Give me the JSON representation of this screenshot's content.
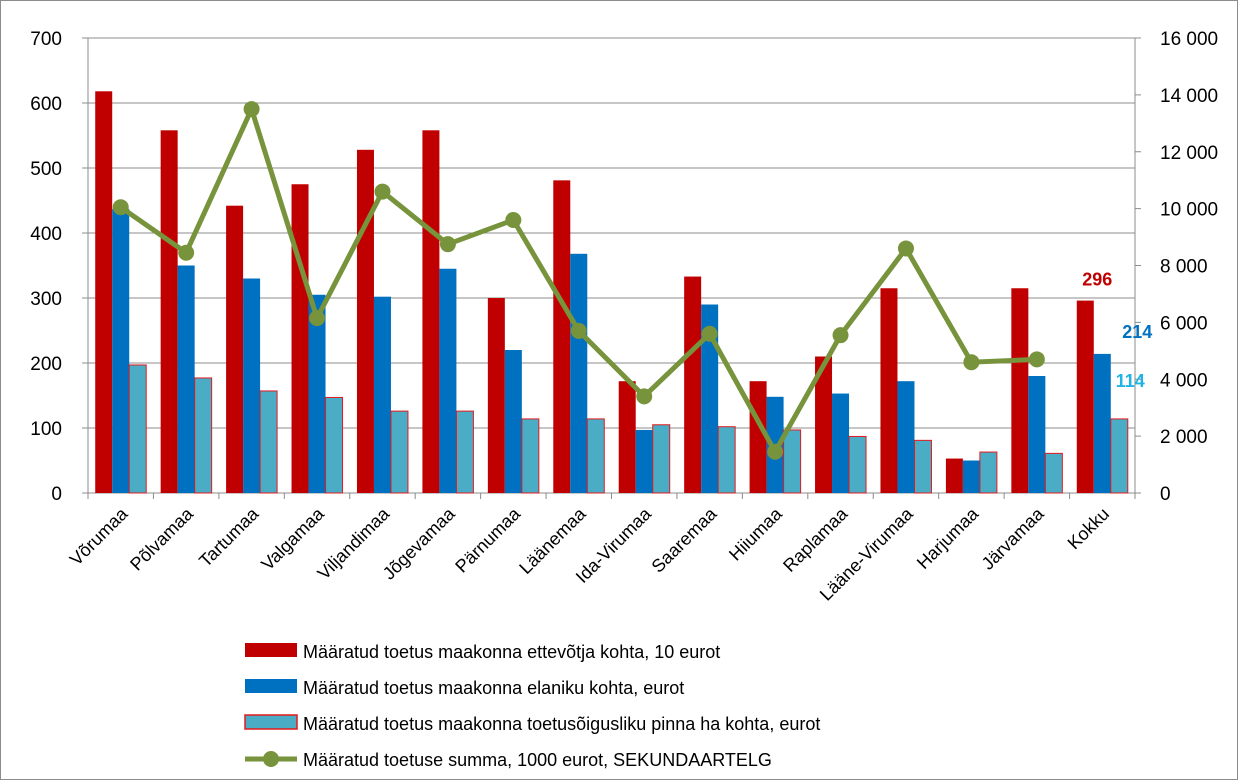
{
  "chart_data": {
    "type": "bar",
    "categories": [
      "Võrumaa",
      "Põlvamaa",
      "Tartumaa",
      "Valgamaa",
      "Viljandimaa",
      "Jõgevamaa",
      "Pärnumaa",
      "Läänemaa",
      "Ida-Virumaa",
      "Saaremaa",
      "Hiiumaa",
      "Raplamaa",
      "Lääne-Virumaa",
      "Harjumaa",
      "Järvamaa",
      "Kokku"
    ],
    "series": [
      {
        "name": "Määratud toetus maakonna ettevõtja kohta, 10 eurot",
        "axis": "primary",
        "type": "bar",
        "color": "#c00000",
        "values": [
          618,
          558,
          442,
          475,
          528,
          558,
          300,
          481,
          172,
          333,
          172,
          210,
          315,
          53,
          315,
          296
        ],
        "data_labels": {
          "15": "296"
        }
      },
      {
        "name": "Määratud toetus maakonna elaniku kohta, eurot",
        "axis": "primary",
        "type": "bar",
        "color": "#0070c0",
        "values": [
          437,
          350,
          330,
          305,
          302,
          345,
          220,
          368,
          97,
          290,
          148,
          153,
          172,
          50,
          180,
          214
        ],
        "data_labels": {
          "15": "214"
        }
      },
      {
        "name": "Määratud toetus maakonna toetusõigusliku pinna ha kohta, eurot",
        "axis": "primary",
        "type": "bar",
        "color": "#4bacc6",
        "border": "#e41a1c",
        "values": [
          197,
          177,
          157,
          147,
          126,
          126,
          114,
          114,
          105,
          102,
          97,
          87,
          81,
          63,
          61,
          114
        ],
        "data_labels": {
          "15": "114"
        }
      },
      {
        "name": "Määratud toetuse summa, 1000 eurot, SEKUNDAARTELG",
        "axis": "secondary",
        "type": "line",
        "color": "#77933c",
        "values": [
          10050,
          8450,
          13500,
          6150,
          10600,
          8750,
          9600,
          5700,
          3400,
          5600,
          1450,
          5550,
          8600,
          4600,
          4700,
          null
        ]
      }
    ],
    "label_colors": [
      "#c00000",
      "#0070c0",
      "#1fb4e6"
    ],
    "y_primary": {
      "min": 0,
      "max": 700,
      "ticks": [
        "0",
        "100",
        "200",
        "300",
        "400",
        "500",
        "600",
        "700"
      ]
    },
    "y_secondary": {
      "min": 0,
      "max": 16000,
      "ticks": [
        "0",
        "2 000",
        "4 000",
        "6 000",
        "8 000",
        "10 000",
        "12 000",
        "14 000",
        "16 000"
      ]
    },
    "grid": true,
    "legend": "bottom"
  }
}
